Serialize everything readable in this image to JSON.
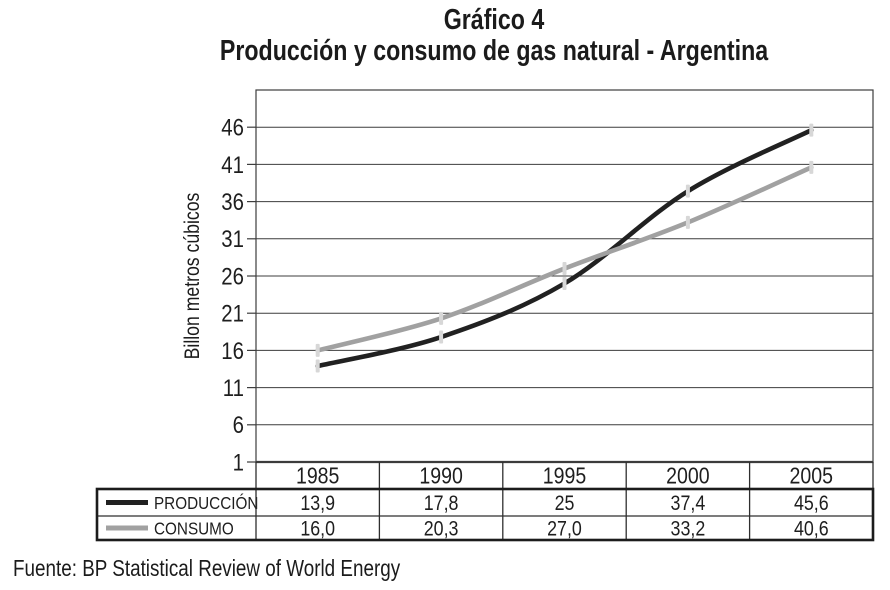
{
  "document": {
    "title_line1": "Gráfico 4",
    "title_line2": "Producción y consumo de gas natural - Argentina",
    "source_note": "Fuente: BP Statistical Review of World Energy"
  },
  "chart_data": {
    "type": "line",
    "title": "Gráfico 4",
    "subtitle": "Producción y consumo de gas natural - Argentina",
    "ylabel": "Billon metros cúbicos",
    "categories": [
      "1985",
      "1990",
      "1995",
      "2000",
      "2005"
    ],
    "series": [
      {
        "name": "PRODUCCIÓN",
        "color": "#212121",
        "values": [
          13.9,
          17.8,
          25,
          37.4,
          45.6
        ],
        "labels": [
          "13,9",
          "17,8",
          "25",
          "37,4",
          "45,6"
        ]
      },
      {
        "name": "CONSUMO",
        "color": "#a1a1a1",
        "values": [
          16.0,
          20.3,
          27.0,
          33.2,
          40.6
        ],
        "labels": [
          "16,0",
          "20,3",
          "27,0",
          "33,2",
          "40,6"
        ]
      }
    ],
    "y_ticks": [
      1,
      6,
      11,
      16,
      21,
      26,
      31,
      36,
      41,
      46
    ],
    "ylim": [
      1,
      51
    ],
    "grid": "horizontal",
    "smooth": true,
    "marker_color": "#d7d7d7",
    "legend_position": "data-table-left",
    "data_table": true
  }
}
